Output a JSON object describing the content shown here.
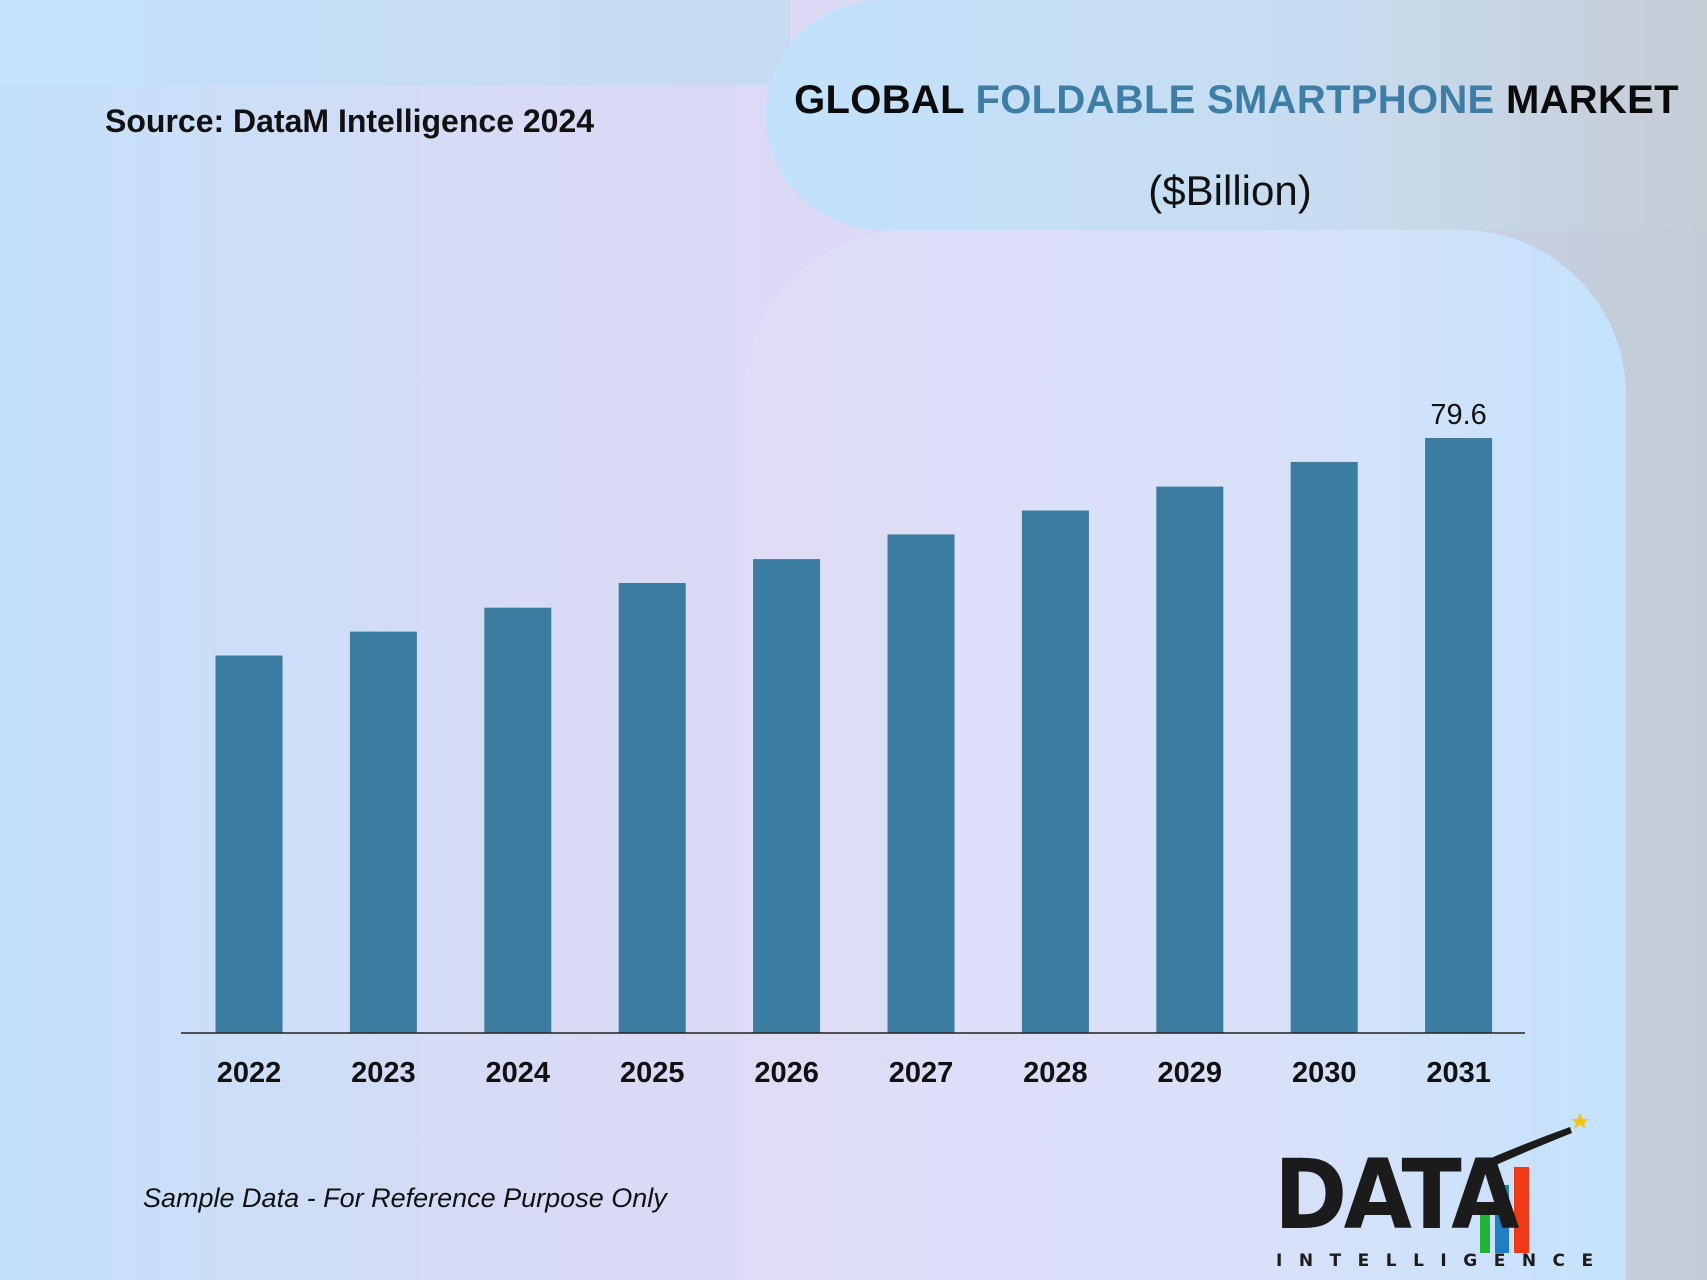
{
  "source": "Source: DataM Intelligence 2024",
  "title": {
    "part1": "GLOBAL ",
    "part2": "FOLDABLE SMARTPHONE",
    "part3": " MARKET"
  },
  "unit": "($Billion)",
  "note": "Sample Data - For Reference Purpose Only",
  "logo": {
    "word": "DATA",
    "subtitle": "INTELLIGENCE"
  },
  "colors": {
    "bar": "#3a7da0",
    "title_accent": "#3d7ea6",
    "logo_bar_green": "#1fb335",
    "logo_bar_blue": "#1e7fc4",
    "logo_bar_red": "#f03a17"
  },
  "chart_data": {
    "type": "bar",
    "title": "GLOBAL FOLDABLE SMARTPHONE MARKET",
    "subtitle": "($Billion)",
    "categories": [
      "2022",
      "2023",
      "2024",
      "2025",
      "2026",
      "2027",
      "2028",
      "2029",
      "2030",
      "2031"
    ],
    "values": [
      50.5,
      53.7,
      56.9,
      60.2,
      63.4,
      66.7,
      69.9,
      73.1,
      76.4,
      79.6
    ],
    "labels": [
      "",
      "",
      "",
      "",
      "",
      "",
      "",
      "",
      "",
      "79.6"
    ],
    "ylim": [
      0,
      79.6
    ],
    "grid": false,
    "legend": "none"
  }
}
